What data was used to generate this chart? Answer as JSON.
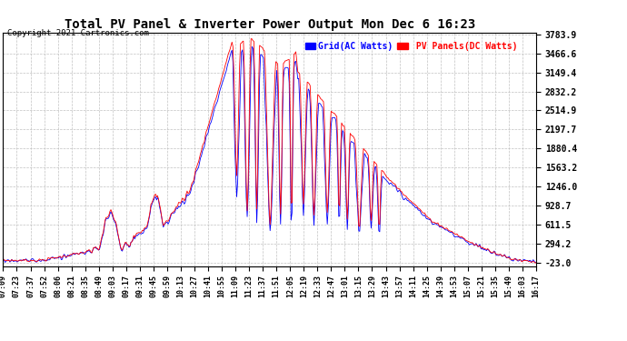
{
  "title": "Total PV Panel & Inverter Power Output Mon Dec 6 16:23",
  "copyright": "Copyright 2021 Cartronics.com",
  "legend_blue": "Grid(AC Watts)",
  "legend_red": " PV Panels(DC Watts)",
  "y_ticks": [
    3783.9,
    3466.6,
    3149.4,
    2832.2,
    2514.9,
    2197.7,
    1880.4,
    1563.2,
    1246.0,
    928.7,
    611.5,
    294.2,
    -23.0
  ],
  "y_min": -23.0,
  "y_max": 3783.9,
  "bg_color": "#ffffff",
  "grid_color": "#bbbbbb",
  "blue_color": "#0000ff",
  "red_color": "#ff0000",
  "x_labels": [
    "07:09",
    "07:23",
    "07:37",
    "07:52",
    "08:06",
    "08:21",
    "08:35",
    "08:49",
    "09:03",
    "09:17",
    "09:31",
    "09:45",
    "09:59",
    "10:13",
    "10:27",
    "10:41",
    "10:55",
    "11:09",
    "11:23",
    "11:37",
    "11:51",
    "12:05",
    "12:19",
    "12:33",
    "12:47",
    "13:01",
    "13:15",
    "13:29",
    "13:43",
    "13:57",
    "14:11",
    "14:25",
    "14:39",
    "14:53",
    "15:07",
    "15:21",
    "15:35",
    "15:49",
    "16:03",
    "16:17"
  ]
}
